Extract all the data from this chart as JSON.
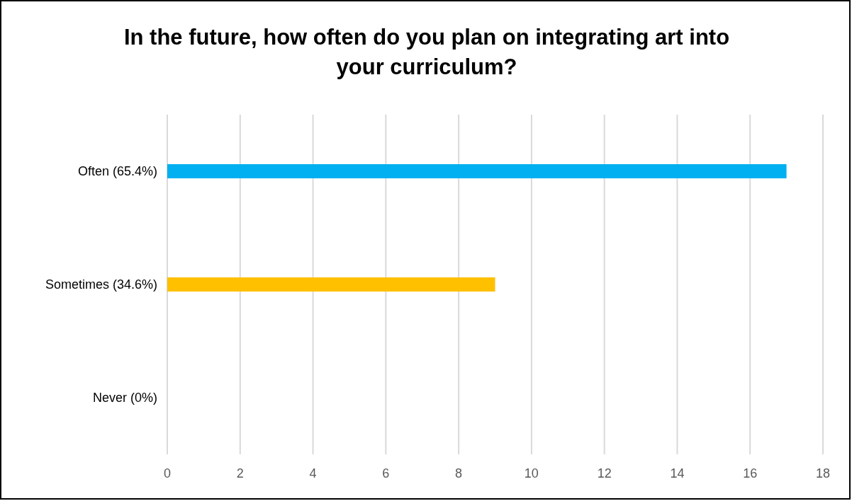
{
  "chart_data": {
    "type": "bar",
    "orientation": "horizontal",
    "title": "In the future, how often do you plan on integrating art into your curriculum?",
    "categories": [
      "Often (65.4%)",
      "Sometimes (34.6%)",
      "Never (0%)"
    ],
    "values": [
      17,
      9,
      0
    ],
    "colors": [
      "#00b0f0",
      "#ffc000",
      "#a5a5a5"
    ],
    "xlim": [
      0,
      18
    ],
    "xticks": [
      0,
      2,
      4,
      6,
      8,
      10,
      12,
      14,
      16,
      18
    ],
    "grid": "x",
    "legend": false
  }
}
